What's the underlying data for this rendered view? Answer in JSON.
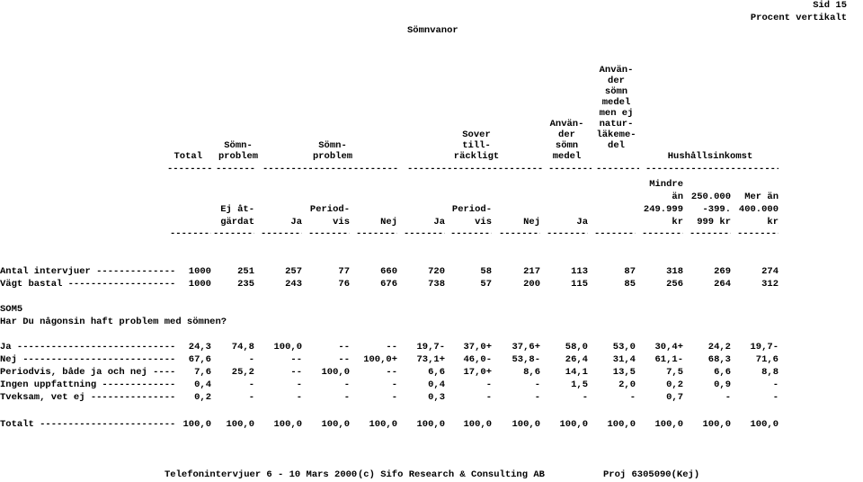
{
  "header": {
    "page": "Sid 15",
    "subtitle": "Procent vertikalt",
    "title": "Sömnvanor"
  },
  "banner": {
    "total": "Total",
    "somnproblem_1": "Sömn-\nproblem",
    "somnproblem_2": "Sömn-\nproblem",
    "sover_tillrackligt": "Sover\ntill-\nräckligt",
    "anvander_somnmedel": "Använ-\nder\nsömn\nmedel",
    "anvander_natur": "Använ-\nder\nsömn\nmedel\nmen ej\nnatur-\nläkeme-\ndel",
    "hushallsinkomst": "Hushållsinkomst"
  },
  "columns": [
    {
      "label": "Ej åt-\ngärdat"
    },
    {
      "label": "Ja"
    },
    {
      "label": "Period-\nvis"
    },
    {
      "label": "Nej"
    },
    {
      "label": "Ja"
    },
    {
      "label": "Period-\nvis"
    },
    {
      "label": "Nej"
    },
    {
      "label": "Ja"
    },
    {
      "label": ""
    },
    {
      "label": "Mindre\nän\n249.999\nkr"
    },
    {
      "label": "250.000\n-399.\n999 kr"
    },
    {
      "label": "Mer än\n400.000\nkr"
    }
  ],
  "rows_meta": [
    {
      "label": "Antal intervjuer --------------",
      "values": [
        "1000",
        "251",
        "257",
        "77",
        "660",
        "720",
        "58",
        "217",
        "113",
        "87",
        "318",
        "269",
        "274"
      ]
    },
    {
      "label": "Vägt bastal -------------------",
      "values": [
        "1000",
        "235",
        "243",
        "76",
        "676",
        "738",
        "57",
        "200",
        "115",
        "85",
        "256",
        "264",
        "312"
      ]
    }
  ],
  "question": {
    "code": "SOM5",
    "text": "Har Du någonsin haft problem med sömnen?"
  },
  "rows": [
    {
      "label": "Ja ----------------------------",
      "values": [
        "24,3",
        "74,8",
        "100,0",
        "--",
        "--",
        "19,7-",
        "37,0+",
        "37,6+",
        "58,0",
        "53,0",
        "30,4+",
        "24,2",
        "19,7-"
      ]
    },
    {
      "label": "Nej ---------------------------",
      "values": [
        "67,6",
        "-",
        "--",
        "--",
        "100,0+",
        "73,1+",
        "46,0-",
        "53,8-",
        "26,4",
        "31,4",
        "61,1-",
        "68,3",
        "71,6"
      ]
    },
    {
      "label": "Periodvis, både ja och nej ----",
      "values": [
        "7,6",
        "25,2",
        "--",
        "100,0",
        "--",
        "6,6",
        "17,0+",
        "8,6",
        "14,1",
        "13,5",
        "7,5",
        "6,6",
        "8,8"
      ]
    },
    {
      "label": "Ingen uppfattning -------------",
      "values": [
        "0,4",
        "-",
        "-",
        "-",
        "-",
        "0,4",
        "-",
        "-",
        "1,5",
        "2,0",
        "0,2",
        "0,9",
        "-"
      ]
    },
    {
      "label": "Tveksam, vet ej ---------------",
      "values": [
        "0,2",
        "-",
        "-",
        "-",
        "-",
        "0,3",
        "-",
        "-",
        "-",
        "-",
        "0,7",
        "-",
        "-"
      ]
    }
  ],
  "total_row": {
    "label": "Totalt ------------------------",
    "values": [
      "100,0",
      "100,0",
      "100,0",
      "100,0",
      "100,0",
      "100,0",
      "100,0",
      "100,0",
      "100,0",
      "100,0",
      "100,0",
      "100,0",
      "100,0"
    ]
  },
  "footer": {
    "left": "Telefonintervjuer 6 - 10 Mars 2000",
    "center": "(c) Sifo Research & Consulting AB",
    "right": "Proj 6305090(Kej)"
  }
}
